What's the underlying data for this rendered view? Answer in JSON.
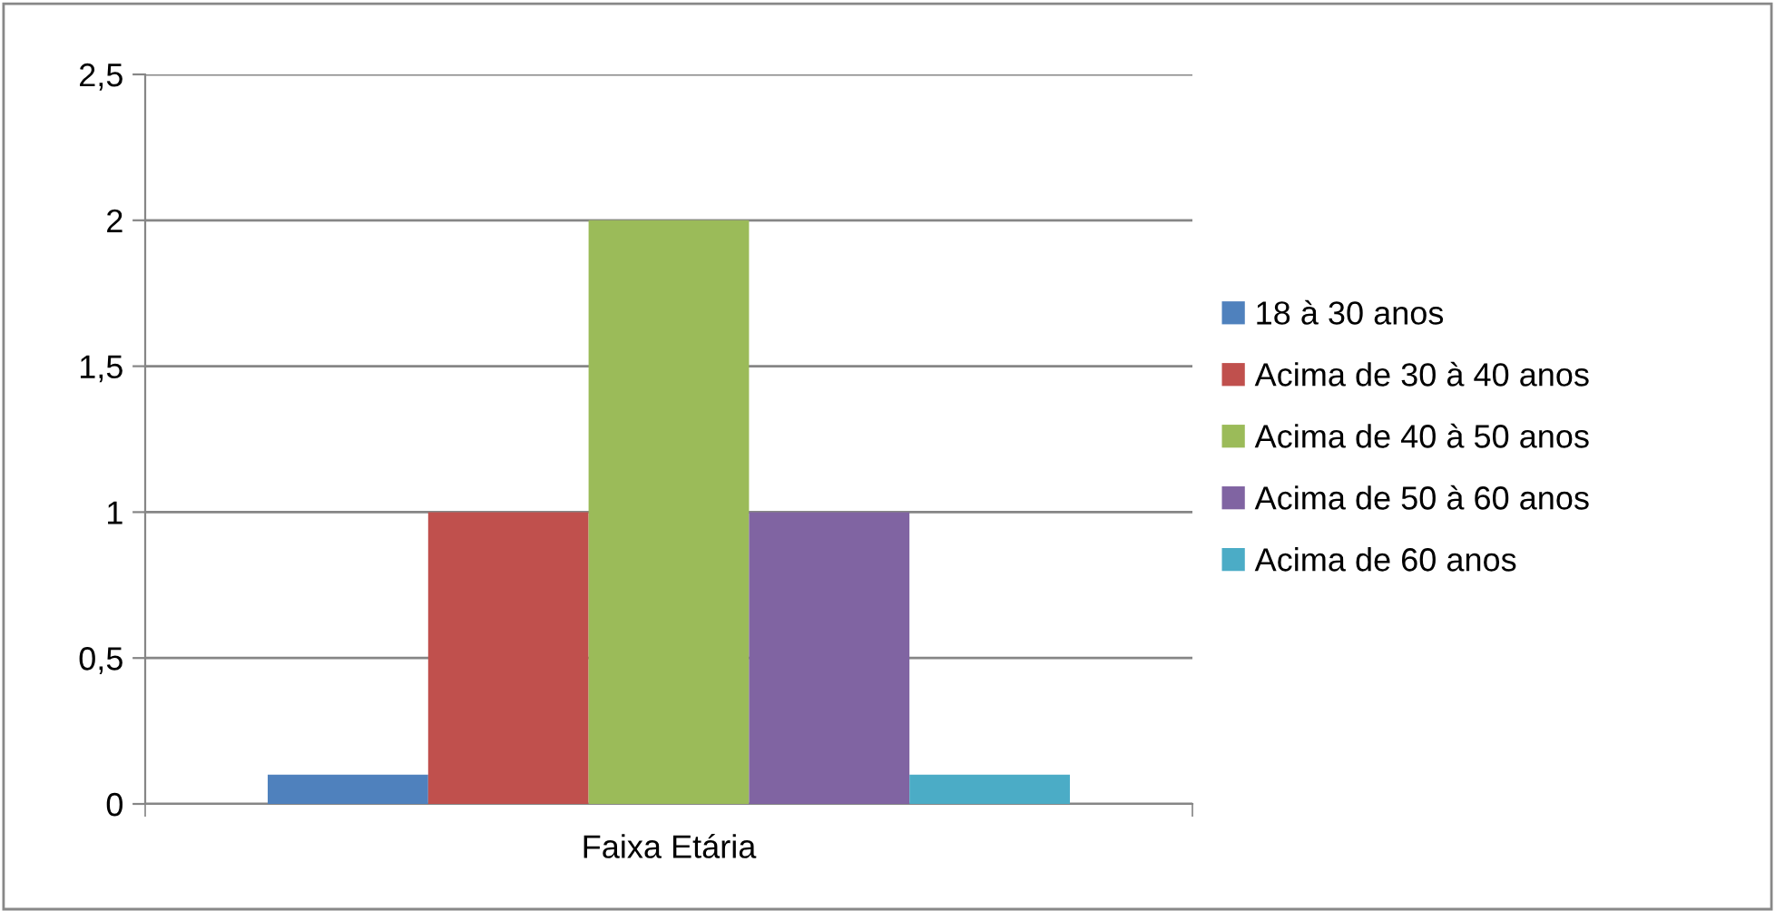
{
  "chart_data": {
    "type": "bar",
    "categories": [
      "Faixa Etária"
    ],
    "series": [
      {
        "name": "18 à 30 anos",
        "color": "#4f81bd",
        "values": [
          0.1
        ]
      },
      {
        "name": "Acima de 30 à 40 anos",
        "color": "#c0504d",
        "values": [
          1
        ]
      },
      {
        "name": "Acima de 40 à 50 anos",
        "color": "#9bbb59",
        "values": [
          2
        ]
      },
      {
        "name": "Acima de 50 à 60 anos",
        "color": "#8064a2",
        "values": [
          1
        ]
      },
      {
        "name": "Acima de 60 anos",
        "color": "#4bacc6",
        "values": [
          0.1
        ]
      }
    ],
    "ylim": [
      0,
      2.5
    ],
    "yticks": [
      0,
      {
        "value": 0.5,
        "label": "0,5"
      },
      1,
      {
        "value": 1.5,
        "label": "1,5"
      },
      2,
      {
        "value": 2.5,
        "label": "2,5"
      }
    ],
    "grid": "y",
    "legend": "right"
  }
}
